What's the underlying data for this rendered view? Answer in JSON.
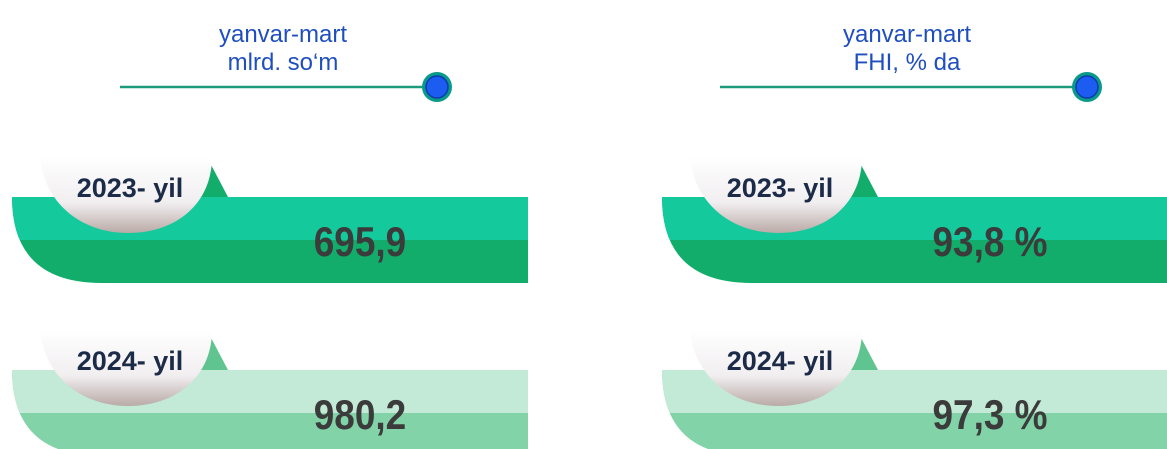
{
  "panels": [
    {
      "header": [
        "yanvar-mart",
        "mlrd. so‘m"
      ],
      "rows": [
        {
          "label": "2023- yil",
          "value": "695,9"
        },
        {
          "label": "2024- yil",
          "value": "980,2"
        }
      ]
    },
    {
      "header": [
        "yanvar-mart",
        "FHI, % da"
      ],
      "rows": [
        {
          "label": "2023- yil",
          "value": "93,8 %"
        },
        {
          "label": "2024- yil",
          "value": "97,3 %"
        }
      ]
    }
  ]
}
